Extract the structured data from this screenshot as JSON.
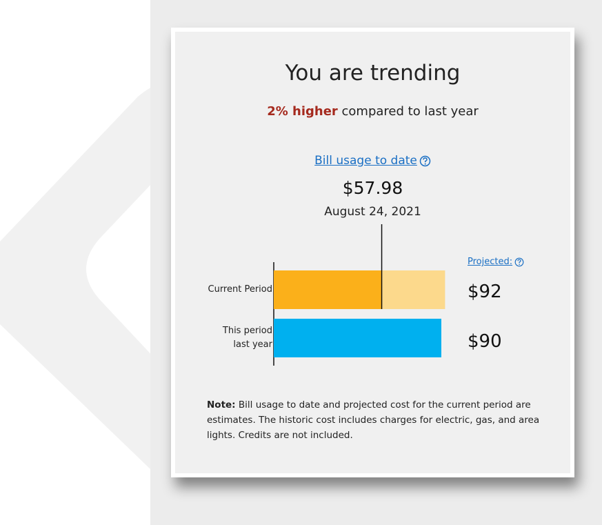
{
  "title": "You are trending",
  "trend": {
    "highlight": "2% higher",
    "text": " compared to last year"
  },
  "usage": {
    "heading": "Bill usage to date",
    "amount": {
      "value": 57.98,
      "label": "$57.98"
    },
    "date": "August 24, 2021"
  },
  "projected_heading": "Projected:",
  "rows": [
    {
      "label": "Current Period",
      "projected": {
        "value": 92,
        "label": "$92"
      },
      "color": "#fbb01a",
      "projected_color": "#fcd98c"
    },
    {
      "label": "This period last year",
      "projected": {
        "value": 90,
        "label": "$90"
      },
      "color": "#00b0ef"
    }
  ],
  "note": {
    "label": "Note:",
    "text": "Bill usage to date and projected cost for the current period are estimates. The historic cost includes charges for electric, gas, and area lights. Credits are not included."
  }
}
